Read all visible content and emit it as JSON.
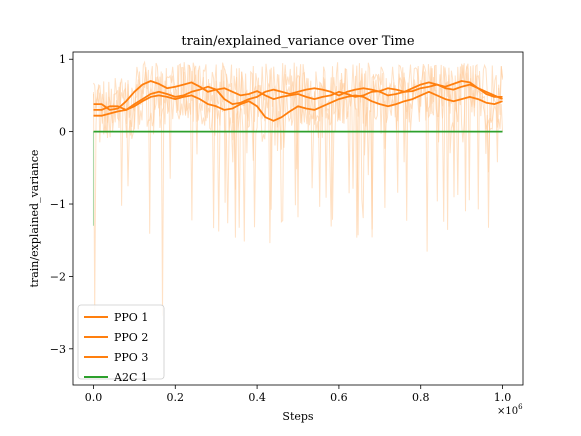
{
  "chart_data": {
    "type": "line",
    "title": "train/explained_variance over Time",
    "xlabel": "Steps",
    "ylabel": "train/explained_variance",
    "x_multiplier_label": "×10",
    "x_multiplier_exp": "6",
    "xlim": [
      -0.05,
      1.05
    ],
    "ylim": [
      -3.5,
      1.1
    ],
    "x_ticks": [
      0.0,
      0.2,
      0.4,
      0.6,
      0.8,
      1.0
    ],
    "x_tick_labels": [
      "0.0",
      "0.2",
      "0.4",
      "0.6",
      "0.8",
      "1.0"
    ],
    "y_ticks": [
      -3,
      -2,
      -1,
      0,
      1
    ],
    "y_tick_labels": [
      "−3",
      "−2",
      "−1",
      "0",
      "1"
    ],
    "grid": false,
    "legend_position": "lower-left",
    "colors": {
      "ppo": "#ff7f0e",
      "ppo_raw": "#ffc896",
      "a2c": "#2ca02c",
      "a2c_raw": "#a8d8a8"
    },
    "series": [
      {
        "name": "PPO 1",
        "color": "#ff7f0e",
        "x": [
          0.0,
          0.02,
          0.04,
          0.06,
          0.08,
          0.1,
          0.12,
          0.14,
          0.16,
          0.18,
          0.2,
          0.22,
          0.24,
          0.26,
          0.28,
          0.3,
          0.32,
          0.34,
          0.36,
          0.38,
          0.4,
          0.42,
          0.44,
          0.46,
          0.48,
          0.5,
          0.52,
          0.54,
          0.56,
          0.58,
          0.6,
          0.62,
          0.64,
          0.66,
          0.68,
          0.7,
          0.72,
          0.74,
          0.76,
          0.78,
          0.8,
          0.82,
          0.84,
          0.86,
          0.88,
          0.9,
          0.92,
          0.94,
          0.96,
          0.98,
          1.0
        ],
        "y": [
          0.38,
          0.38,
          0.3,
          0.32,
          0.42,
          0.55,
          0.65,
          0.7,
          0.66,
          0.6,
          0.62,
          0.65,
          0.68,
          0.62,
          0.55,
          0.58,
          0.6,
          0.55,
          0.5,
          0.52,
          0.56,
          0.5,
          0.45,
          0.48,
          0.5,
          0.52,
          0.48,
          0.45,
          0.48,
          0.5,
          0.55,
          0.52,
          0.48,
          0.5,
          0.55,
          0.56,
          0.6,
          0.58,
          0.55,
          0.56,
          0.6,
          0.62,
          0.65,
          0.6,
          0.58,
          0.62,
          0.65,
          0.6,
          0.52,
          0.48,
          0.48
        ]
      },
      {
        "name": "PPO 2",
        "color": "#ff7f0e",
        "x": [
          0.0,
          0.02,
          0.04,
          0.06,
          0.08,
          0.1,
          0.12,
          0.14,
          0.16,
          0.18,
          0.2,
          0.22,
          0.24,
          0.26,
          0.28,
          0.3,
          0.32,
          0.34,
          0.36,
          0.38,
          0.4,
          0.42,
          0.44,
          0.46,
          0.48,
          0.5,
          0.52,
          0.54,
          0.56,
          0.58,
          0.6,
          0.62,
          0.64,
          0.66,
          0.68,
          0.7,
          0.72,
          0.74,
          0.76,
          0.78,
          0.8,
          0.82,
          0.84,
          0.86,
          0.88,
          0.9,
          0.92,
          0.94,
          0.96,
          0.98,
          1.0
        ],
        "y": [
          0.3,
          0.3,
          0.35,
          0.35,
          0.3,
          0.38,
          0.45,
          0.52,
          0.55,
          0.52,
          0.48,
          0.5,
          0.55,
          0.58,
          0.62,
          0.58,
          0.45,
          0.38,
          0.4,
          0.45,
          0.48,
          0.55,
          0.58,
          0.55,
          0.52,
          0.55,
          0.58,
          0.6,
          0.58,
          0.55,
          0.5,
          0.55,
          0.58,
          0.6,
          0.58,
          0.55,
          0.5,
          0.52,
          0.55,
          0.6,
          0.65,
          0.68,
          0.65,
          0.62,
          0.66,
          0.7,
          0.68,
          0.6,
          0.55,
          0.5,
          0.45
        ]
      },
      {
        "name": "PPO 3",
        "color": "#ff7f0e",
        "x": [
          0.0,
          0.02,
          0.04,
          0.06,
          0.08,
          0.1,
          0.12,
          0.14,
          0.16,
          0.18,
          0.2,
          0.22,
          0.24,
          0.26,
          0.28,
          0.3,
          0.32,
          0.34,
          0.36,
          0.38,
          0.4,
          0.42,
          0.44,
          0.46,
          0.48,
          0.5,
          0.52,
          0.54,
          0.56,
          0.58,
          0.6,
          0.62,
          0.64,
          0.66,
          0.68,
          0.7,
          0.72,
          0.74,
          0.76,
          0.78,
          0.8,
          0.82,
          0.84,
          0.86,
          0.88,
          0.9,
          0.92,
          0.94,
          0.96,
          0.98,
          1.0
        ],
        "y": [
          0.22,
          0.22,
          0.25,
          0.28,
          0.3,
          0.35,
          0.42,
          0.48,
          0.5,
          0.48,
          0.45,
          0.48,
          0.5,
          0.45,
          0.38,
          0.35,
          0.3,
          0.32,
          0.38,
          0.42,
          0.35,
          0.2,
          0.15,
          0.2,
          0.28,
          0.35,
          0.32,
          0.3,
          0.35,
          0.4,
          0.45,
          0.48,
          0.5,
          0.48,
          0.42,
          0.38,
          0.35,
          0.38,
          0.42,
          0.45,
          0.5,
          0.55,
          0.5,
          0.45,
          0.42,
          0.45,
          0.48,
          0.45,
          0.4,
          0.38,
          0.42
        ]
      },
      {
        "name": "A2C 1",
        "color": "#2ca02c",
        "x": [
          0.0,
          0.2,
          0.4,
          0.6,
          0.8,
          1.0
        ],
        "y": [
          0.0,
          0.0,
          0.0,
          0.0,
          0.0,
          0.0
        ]
      }
    ]
  }
}
